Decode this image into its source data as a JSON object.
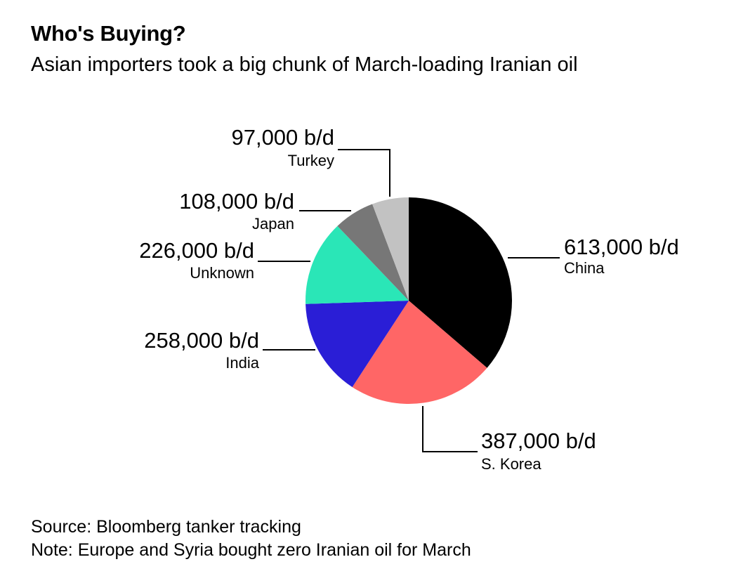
{
  "title": "Who's Buying?",
  "subtitle": "Asian importers took a big chunk of March-loading Iranian oil",
  "chart_data": {
    "type": "pie",
    "title": "Who's Buying?",
    "subtitle": "Asian importers took a big chunk of March-loading Iranian oil",
    "unit": "b/d",
    "start": "12 o'clock",
    "direction": "clockwise",
    "slices": [
      {
        "name": "China",
        "value": 613000,
        "value_label": "613,000 b/d",
        "color": "#000000"
      },
      {
        "name": "S. Korea",
        "value": 387000,
        "value_label": "387,000 b/d",
        "color": "#FF6666"
      },
      {
        "name": "India",
        "value": 258000,
        "value_label": "258,000 b/d",
        "color": "#2A1ED6"
      },
      {
        "name": "Unknown",
        "value": 226000,
        "value_label": "226,000 b/d",
        "color": "#2AE6B7"
      },
      {
        "name": "Japan",
        "value": 108000,
        "value_label": "108,000 b/d",
        "color": "#777777"
      },
      {
        "name": "Turkey",
        "value": 97000,
        "value_label": "97,000 b/d",
        "color": "#C2C2C2"
      }
    ]
  },
  "footer": {
    "source": "Source: Bloomberg tanker tracking",
    "note": "Note: Europe and Syria bought zero Iranian oil for March"
  }
}
